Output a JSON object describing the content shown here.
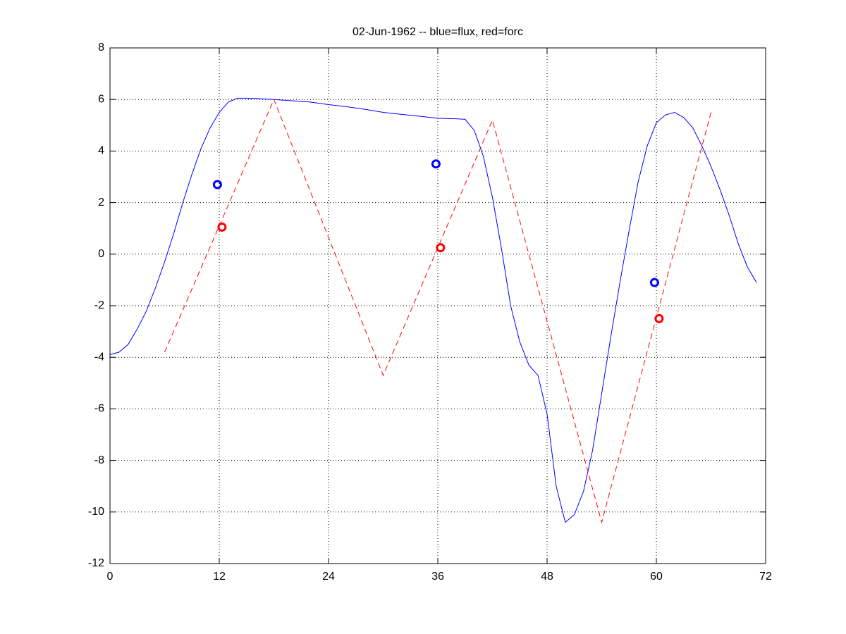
{
  "chart_data": {
    "type": "line",
    "title": "02-Jun-1962 -- blue=flux, red=forc",
    "xlim": [
      0,
      72
    ],
    "xticks": [
      0,
      12,
      24,
      36,
      48,
      60,
      72
    ],
    "ylim": [
      -12,
      8
    ],
    "yticks": [
      -12,
      -10,
      -8,
      -6,
      -4,
      -2,
      0,
      2,
      4,
      6,
      8
    ],
    "grid": true,
    "series": [
      {
        "color": "#0000ff",
        "line_style": "solid",
        "x": [
          0,
          1,
          2,
          3,
          4,
          5,
          6,
          7,
          8,
          9,
          10,
          11,
          12,
          13,
          14,
          15,
          16,
          18,
          20,
          22,
          24,
          26,
          28,
          30,
          32,
          34,
          36,
          38,
          39,
          40,
          41,
          42,
          43,
          44,
          45,
          46,
          47,
          48,
          49,
          50,
          51,
          52,
          53,
          54,
          55,
          56,
          57,
          58,
          59,
          60,
          61,
          62,
          63,
          64,
          65,
          66,
          67,
          68,
          69,
          70,
          71
        ],
        "values": [
          -3.9,
          -3.8,
          -3.5,
          -2.9,
          -2.2,
          -1.3,
          -0.3,
          0.8,
          2.0,
          3.1,
          4.1,
          4.9,
          5.5,
          5.9,
          6.05,
          6.05,
          6.04,
          6.0,
          5.95,
          5.9,
          5.8,
          5.72,
          5.62,
          5.5,
          5.42,
          5.35,
          5.27,
          5.25,
          5.23,
          4.8,
          3.8,
          2.2,
          0.2,
          -2.0,
          -3.4,
          -4.3,
          -4.7,
          -6.2,
          -9.0,
          -10.4,
          -10.1,
          -9.2,
          -7.6,
          -5.4,
          -3.2,
          -1.1,
          0.9,
          2.8,
          4.2,
          5.1,
          5.4,
          5.5,
          5.3,
          4.9,
          4.2,
          3.4,
          2.5,
          1.5,
          0.4,
          -0.5,
          -1.1
        ]
      },
      {
        "color": "#ff0000",
        "line_style": "dashed",
        "x": [
          6,
          18,
          30,
          42,
          54,
          66
        ],
        "values": [
          -3.8,
          6.0,
          -4.7,
          5.2,
          -10.4,
          5.5
        ]
      },
      {
        "color": "#0000ff",
        "marker": "o",
        "x": [
          11.8,
          35.8,
          59.8
        ],
        "values": [
          2.7,
          3.5,
          -1.1
        ]
      },
      {
        "color": "#ff0000",
        "marker": "o",
        "x": [
          12.3,
          36.3,
          60.3
        ],
        "values": [
          1.05,
          0.25,
          -2.5
        ]
      }
    ]
  }
}
